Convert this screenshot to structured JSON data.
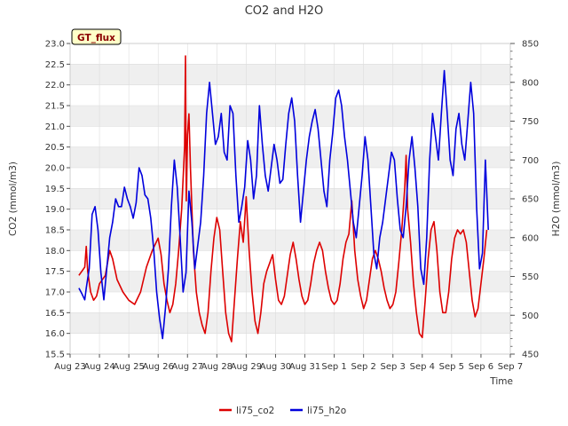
{
  "chart_data": {
    "type": "line",
    "title": "CO2 and H2O",
    "xlabel": "Time",
    "ylabel_left": "CO2 (mmol/m3)",
    "ylabel_right": "H2O (mmol/m3)",
    "site_badge": "GT_flux",
    "x_ticks": [
      "Aug 23",
      "Aug 24",
      "Aug 25",
      "Aug 26",
      "Aug 27",
      "Aug 28",
      "Aug 29",
      "Aug 30",
      "Aug 31",
      "Sep 1",
      "Sep 2",
      "Sep 3",
      "Sep 4",
      "Sep 5",
      "Sep 6",
      "Sep 7"
    ],
    "xlim_days": [
      0,
      15
    ],
    "ylim_left": [
      15.5,
      23.0
    ],
    "ylim_right": [
      450,
      850
    ],
    "yticks_left": [
      "15.5",
      "16.0",
      "16.5",
      "17.0",
      "17.5",
      "18.0",
      "18.5",
      "19.0",
      "19.5",
      "20.0",
      "20.5",
      "21.0",
      "21.5",
      "22.0",
      "22.5",
      "23.0"
    ],
    "yticks_right": [
      "450",
      "500",
      "550",
      "600",
      "650",
      "700",
      "750",
      "800",
      "850"
    ],
    "series": [
      {
        "name": "li75_co2",
        "color": "#dd0000",
        "axis": "left",
        "points": [
          [
            0.3,
            17.4
          ],
          [
            0.5,
            17.6
          ],
          [
            0.55,
            18.1
          ],
          [
            0.6,
            17.5
          ],
          [
            0.7,
            17.0
          ],
          [
            0.8,
            16.8
          ],
          [
            0.9,
            16.9
          ],
          [
            1.0,
            17.2
          ],
          [
            1.2,
            17.4
          ],
          [
            1.35,
            18.0
          ],
          [
            1.45,
            17.8
          ],
          [
            1.6,
            17.3
          ],
          [
            1.8,
            17.0
          ],
          [
            2.0,
            16.8
          ],
          [
            2.2,
            16.7
          ],
          [
            2.4,
            17.0
          ],
          [
            2.6,
            17.6
          ],
          [
            2.8,
            18.0
          ],
          [
            3.0,
            18.3
          ],
          [
            3.1,
            17.9
          ],
          [
            3.2,
            17.2
          ],
          [
            3.3,
            16.8
          ],
          [
            3.4,
            16.5
          ],
          [
            3.5,
            16.7
          ],
          [
            3.6,
            17.2
          ],
          [
            3.7,
            18.0
          ],
          [
            3.8,
            19.0
          ],
          [
            3.9,
            20.5
          ],
          [
            3.93,
            22.7
          ],
          [
            3.96,
            19.2
          ],
          [
            4.0,
            20.8
          ],
          [
            4.05,
            21.3
          ],
          [
            4.1,
            20.0
          ],
          [
            4.2,
            18.0
          ],
          [
            4.3,
            17.0
          ],
          [
            4.4,
            16.5
          ],
          [
            4.5,
            16.2
          ],
          [
            4.6,
            16.0
          ],
          [
            4.7,
            16.5
          ],
          [
            4.8,
            17.5
          ],
          [
            4.9,
            18.3
          ],
          [
            5.0,
            18.8
          ],
          [
            5.1,
            18.5
          ],
          [
            5.2,
            17.5
          ],
          [
            5.3,
            16.5
          ],
          [
            5.4,
            16.0
          ],
          [
            5.5,
            15.8
          ],
          [
            5.6,
            16.8
          ],
          [
            5.7,
            17.8
          ],
          [
            5.8,
            18.7
          ],
          [
            5.9,
            18.2
          ],
          [
            6.0,
            19.3
          ],
          [
            6.1,
            18.0
          ],
          [
            6.2,
            17.0
          ],
          [
            6.3,
            16.3
          ],
          [
            6.4,
            16.0
          ],
          [
            6.5,
            16.5
          ],
          [
            6.6,
            17.2
          ],
          [
            6.7,
            17.5
          ],
          [
            6.8,
            17.7
          ],
          [
            6.9,
            17.9
          ],
          [
            7.0,
            17.3
          ],
          [
            7.1,
            16.8
          ],
          [
            7.2,
            16.7
          ],
          [
            7.3,
            16.9
          ],
          [
            7.4,
            17.4
          ],
          [
            7.5,
            17.9
          ],
          [
            7.6,
            18.2
          ],
          [
            7.7,
            17.8
          ],
          [
            7.8,
            17.3
          ],
          [
            7.9,
            16.9
          ],
          [
            8.0,
            16.7
          ],
          [
            8.1,
            16.8
          ],
          [
            8.2,
            17.2
          ],
          [
            8.3,
            17.7
          ],
          [
            8.4,
            18.0
          ],
          [
            8.5,
            18.2
          ],
          [
            8.6,
            18.0
          ],
          [
            8.7,
            17.5
          ],
          [
            8.8,
            17.1
          ],
          [
            8.9,
            16.8
          ],
          [
            9.0,
            16.7
          ],
          [
            9.1,
            16.8
          ],
          [
            9.2,
            17.2
          ],
          [
            9.3,
            17.8
          ],
          [
            9.4,
            18.2
          ],
          [
            9.5,
            18.4
          ],
          [
            9.6,
            19.2
          ],
          [
            9.7,
            18.0
          ],
          [
            9.8,
            17.3
          ],
          [
            9.9,
            16.9
          ],
          [
            10.0,
            16.6
          ],
          [
            10.1,
            16.8
          ],
          [
            10.2,
            17.3
          ],
          [
            10.3,
            17.8
          ],
          [
            10.4,
            18.0
          ],
          [
            10.5,
            17.8
          ],
          [
            10.6,
            17.5
          ],
          [
            10.7,
            17.1
          ],
          [
            10.8,
            16.8
          ],
          [
            10.9,
            16.6
          ],
          [
            11.0,
            16.7
          ],
          [
            11.1,
            17.0
          ],
          [
            11.2,
            17.7
          ],
          [
            11.3,
            18.5
          ],
          [
            11.4,
            19.5
          ],
          [
            11.45,
            20.3
          ],
          [
            11.5,
            19.0
          ],
          [
            11.6,
            18.2
          ],
          [
            11.7,
            17.2
          ],
          [
            11.8,
            16.5
          ],
          [
            11.9,
            16.0
          ],
          [
            12.0,
            15.9
          ],
          [
            12.1,
            16.8
          ],
          [
            12.2,
            17.8
          ],
          [
            12.3,
            18.5
          ],
          [
            12.4,
            18.7
          ],
          [
            12.5,
            18.0
          ],
          [
            12.6,
            17.0
          ],
          [
            12.7,
            16.5
          ],
          [
            12.8,
            16.5
          ],
          [
            12.9,
            17.0
          ],
          [
            13.0,
            17.8
          ],
          [
            13.1,
            18.3
          ],
          [
            13.2,
            18.5
          ],
          [
            13.3,
            18.4
          ],
          [
            13.4,
            18.5
          ],
          [
            13.5,
            18.2
          ],
          [
            13.6,
            17.5
          ],
          [
            13.7,
            16.8
          ],
          [
            13.8,
            16.4
          ],
          [
            13.9,
            16.6
          ],
          [
            14.0,
            17.2
          ],
          [
            14.1,
            17.8
          ],
          [
            14.2,
            18.5
          ]
        ]
      },
      {
        "name": "li75_h2o",
        "color": "#0000dd",
        "axis": "right",
        "points": [
          [
            0.3,
            535
          ],
          [
            0.4,
            528
          ],
          [
            0.5,
            520
          ],
          [
            0.55,
            535
          ],
          [
            0.65,
            560
          ],
          [
            0.75,
            630
          ],
          [
            0.85,
            640
          ],
          [
            0.95,
            610
          ],
          [
            1.05,
            555
          ],
          [
            1.15,
            520
          ],
          [
            1.25,
            560
          ],
          [
            1.35,
            600
          ],
          [
            1.45,
            620
          ],
          [
            1.55,
            650
          ],
          [
            1.65,
            640
          ],
          [
            1.75,
            640
          ],
          [
            1.85,
            665
          ],
          [
            1.95,
            650
          ],
          [
            2.05,
            640
          ],
          [
            2.15,
            625
          ],
          [
            2.25,
            645
          ],
          [
            2.35,
            690
          ],
          [
            2.45,
            680
          ],
          [
            2.55,
            655
          ],
          [
            2.65,
            650
          ],
          [
            2.75,
            625
          ],
          [
            2.85,
            585
          ],
          [
            2.95,
            530
          ],
          [
            3.05,
            495
          ],
          [
            3.15,
            470
          ],
          [
            3.25,
            510
          ],
          [
            3.35,
            560
          ],
          [
            3.45,
            640
          ],
          [
            3.55,
            700
          ],
          [
            3.65,
            665
          ],
          [
            3.75,
            600
          ],
          [
            3.85,
            530
          ],
          [
            3.95,
            555
          ],
          [
            4.05,
            660
          ],
          [
            4.15,
            620
          ],
          [
            4.25,
            560
          ],
          [
            4.35,
            590
          ],
          [
            4.45,
            620
          ],
          [
            4.55,
            680
          ],
          [
            4.65,
            760
          ],
          [
            4.75,
            800
          ],
          [
            4.85,
            760
          ],
          [
            4.95,
            720
          ],
          [
            5.05,
            730
          ],
          [
            5.15,
            760
          ],
          [
            5.25,
            710
          ],
          [
            5.35,
            700
          ],
          [
            5.45,
            770
          ],
          [
            5.55,
            760
          ],
          [
            5.65,
            680
          ],
          [
            5.75,
            620
          ],
          [
            5.85,
            640
          ],
          [
            5.95,
            665
          ],
          [
            6.05,
            725
          ],
          [
            6.15,
            700
          ],
          [
            6.25,
            650
          ],
          [
            6.35,
            680
          ],
          [
            6.45,
            770
          ],
          [
            6.55,
            720
          ],
          [
            6.65,
            680
          ],
          [
            6.75,
            660
          ],
          [
            6.85,
            690
          ],
          [
            6.95,
            720
          ],
          [
            7.05,
            700
          ],
          [
            7.15,
            670
          ],
          [
            7.25,
            675
          ],
          [
            7.35,
            720
          ],
          [
            7.45,
            760
          ],
          [
            7.55,
            780
          ],
          [
            7.65,
            750
          ],
          [
            7.75,
            680
          ],
          [
            7.85,
            620
          ],
          [
            7.95,
            660
          ],
          [
            8.05,
            700
          ],
          [
            8.15,
            730
          ],
          [
            8.25,
            750
          ],
          [
            8.35,
            765
          ],
          [
            8.45,
            740
          ],
          [
            8.55,
            700
          ],
          [
            8.65,
            660
          ],
          [
            8.75,
            640
          ],
          [
            8.85,
            700
          ],
          [
            8.95,
            735
          ],
          [
            9.05,
            780
          ],
          [
            9.15,
            790
          ],
          [
            9.25,
            770
          ],
          [
            9.35,
            730
          ],
          [
            9.45,
            700
          ],
          [
            9.55,
            660
          ],
          [
            9.65,
            620
          ],
          [
            9.75,
            600
          ],
          [
            9.85,
            640
          ],
          [
            9.95,
            680
          ],
          [
            10.05,
            730
          ],
          [
            10.15,
            700
          ],
          [
            10.25,
            640
          ],
          [
            10.35,
            580
          ],
          [
            10.45,
            560
          ],
          [
            10.55,
            600
          ],
          [
            10.65,
            620
          ],
          [
            10.75,
            650
          ],
          [
            10.85,
            680
          ],
          [
            10.95,
            710
          ],
          [
            11.05,
            700
          ],
          [
            11.15,
            650
          ],
          [
            11.25,
            610
          ],
          [
            11.35,
            600
          ],
          [
            11.45,
            640
          ],
          [
            11.55,
            700
          ],
          [
            11.65,
            730
          ],
          [
            11.75,
            690
          ],
          [
            11.85,
            640
          ],
          [
            11.95,
            560
          ],
          [
            12.05,
            540
          ],
          [
            12.15,
            600
          ],
          [
            12.25,
            700
          ],
          [
            12.35,
            760
          ],
          [
            12.45,
            730
          ],
          [
            12.55,
            700
          ],
          [
            12.65,
            760
          ],
          [
            12.75,
            815
          ],
          [
            12.85,
            760
          ],
          [
            12.95,
            700
          ],
          [
            13.05,
            680
          ],
          [
            13.15,
            740
          ],
          [
            13.25,
            760
          ],
          [
            13.35,
            720
          ],
          [
            13.45,
            700
          ],
          [
            13.55,
            750
          ],
          [
            13.65,
            800
          ],
          [
            13.75,
            760
          ],
          [
            13.85,
            640
          ],
          [
            13.95,
            560
          ],
          [
            14.05,
            580
          ],
          [
            14.15,
            700
          ],
          [
            14.25,
            610
          ]
        ]
      }
    ]
  }
}
